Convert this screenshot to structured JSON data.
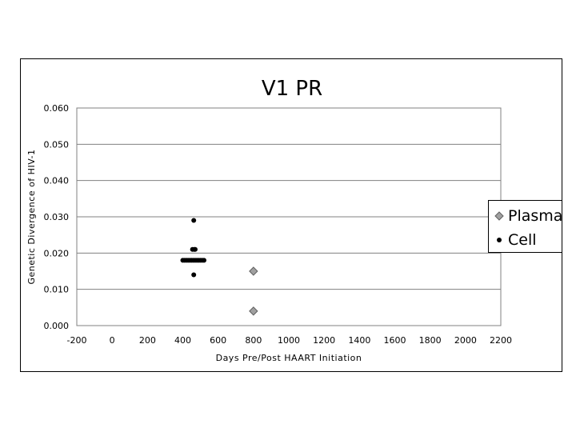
{
  "chart_data": {
    "type": "scatter",
    "title": "V1 PR",
    "xlabel": "Days  Pre/Post  HAART  Initiation",
    "ylabel": "Genetic  Divergence  of  HIV-1",
    "xlim": [
      -200,
      2200
    ],
    "ylim": [
      0,
      0.06
    ],
    "x_ticks": [
      "-200",
      "0",
      "200",
      "400",
      "600",
      "800",
      "1000",
      "1200",
      "1400",
      "1600",
      "1800",
      "2000",
      "2200"
    ],
    "y_ticks": [
      "0.000",
      "0.010",
      "0.020",
      "0.030",
      "0.040",
      "0.050",
      "0.060"
    ],
    "grid": "horizontal",
    "legend_position": "right",
    "series": [
      {
        "name": "Plasma",
        "marker": "diamond",
        "color": "#a0a0a0",
        "x": [
          800,
          800
        ],
        "y": [
          0.015,
          0.004
        ]
      },
      {
        "name": "Cell",
        "marker": "circle",
        "color": "#000000",
        "x": [
          462,
          400,
          410,
          420,
          430,
          440,
          450,
          460,
          470,
          480,
          490,
          500,
          510,
          520,
          455,
          465,
          470,
          462
        ],
        "y": [
          0.029,
          0.018,
          0.018,
          0.018,
          0.018,
          0.018,
          0.018,
          0.018,
          0.018,
          0.018,
          0.018,
          0.018,
          0.018,
          0.018,
          0.021,
          0.021,
          0.021,
          0.014
        ]
      }
    ]
  }
}
